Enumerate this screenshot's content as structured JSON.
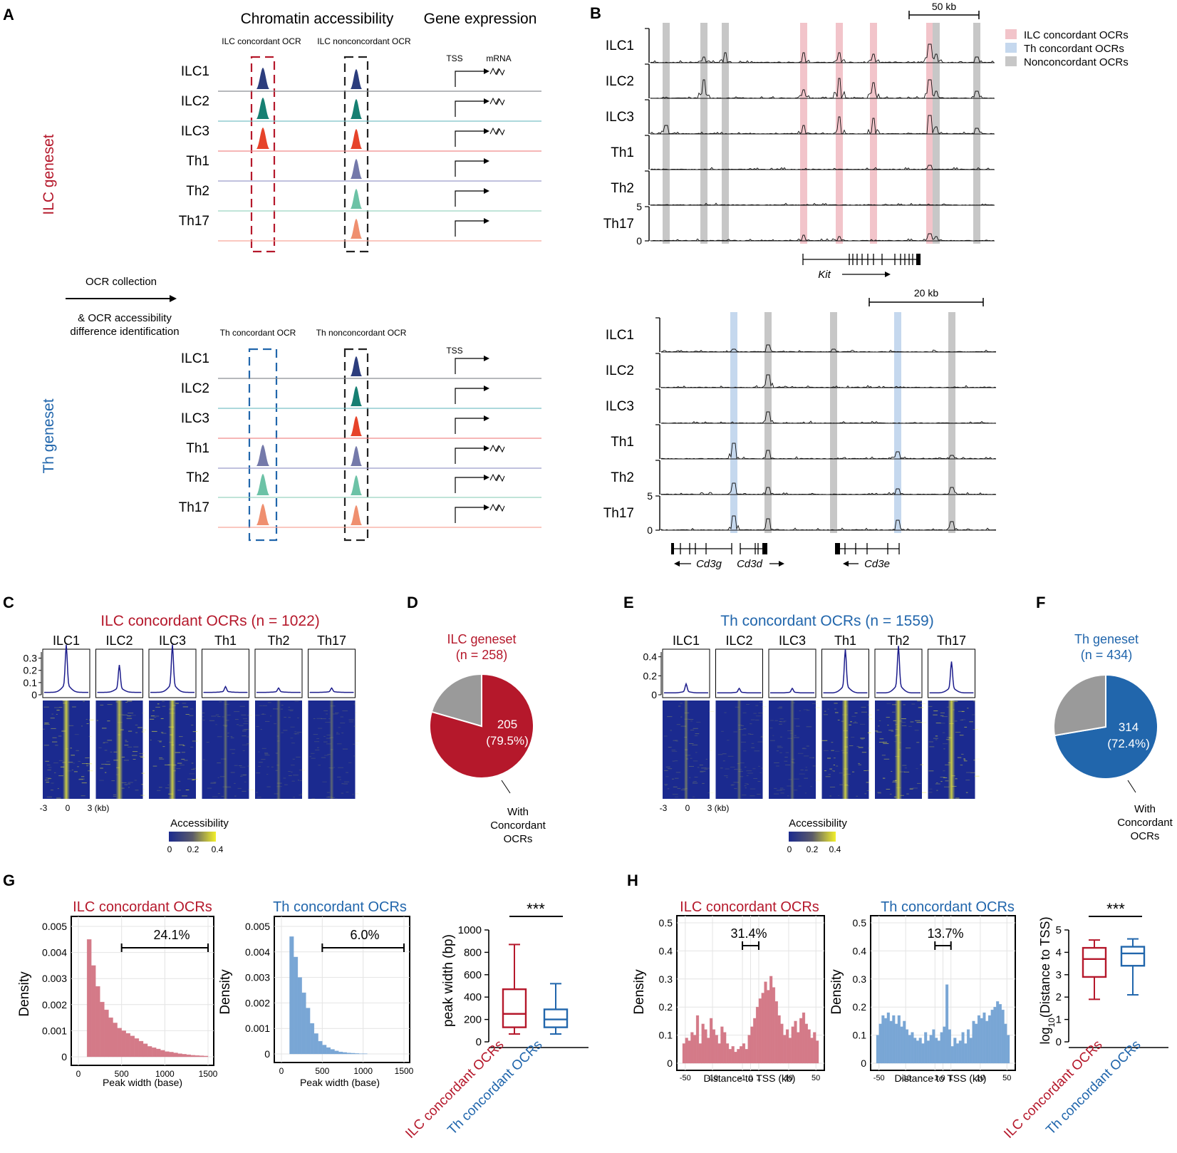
{
  "colors": {
    "ilc_red": "#b5182b",
    "th_blue": "#2166ac",
    "ilc1": "#2c3d7d",
    "ilc2": "#167f72",
    "ilc3": "#e6432a",
    "th1": "#7479aa",
    "th2": "#6cc2a6",
    "th17": "#ef8f6f",
    "ilc_hist": "#d47a88",
    "th_hist": "#79a6d5",
    "pie_gray": "#9a9a9a",
    "hm_bg": "#1b2a8f",
    "hm_hot": "#e8e83a"
  },
  "panel_letters": [
    "A",
    "B",
    "C",
    "D",
    "E",
    "F",
    "G",
    "H"
  ],
  "panelA": {
    "col_header_chrom": "Chromatin accessibility",
    "col_header_expr": "Gene expression",
    "ilc_geneset_label": "ILC geneset",
    "th_geneset_label": "Th geneset",
    "ilc_concordant_label": "ILC concordant OCR",
    "ilc_nonconcordant_label": "ILC nonconcordant OCR",
    "th_concordant_label": "Th concordant OCR",
    "th_nonconcordant_label": "Th nonconcordant OCR",
    "tss_label": "TSS",
    "mrna_label": "mRNA",
    "ocr_collection": "OCR collection",
    "ocr_diff_line1": "& OCR accessibility",
    "ocr_diff_line2": "difference identification",
    "cells": [
      "ILC1",
      "ILC2",
      "ILC3",
      "Th1",
      "Th2",
      "Th17"
    ]
  },
  "panelB": {
    "tracks": [
      "ILC1",
      "ILC2",
      "ILC3",
      "Th1",
      "Th2",
      "Th17"
    ],
    "scale_top": "50 kb",
    "scale_bottom": "20 kb",
    "y_max": "5",
    "y_min": "0",
    "gene_kit": "Kit",
    "gene_cd3g": "Cd3g",
    "gene_cd3d": "Cd3d",
    "gene_cd3e": "Cd3e",
    "legend": [
      {
        "label": "ILC concordant OCRs",
        "color": "#f2c4ca"
      },
      {
        "label": "Th concordant OCRs",
        "color": "#c5d8ee"
      },
      {
        "label": "Nonconcordant OCRs",
        "color": "#c7c7c7"
      }
    ]
  },
  "panelC": {
    "title": "ILC concordant OCRs (n = 1022)",
    "columns": [
      "ILC1",
      "ILC2",
      "ILC3",
      "Th1",
      "Th2",
      "Th17"
    ],
    "y_ticks": [
      "0.3",
      "0.2",
      "0.1",
      "0"
    ],
    "x_ticks": [
      "-3",
      "0",
      "3 (kb)"
    ],
    "colorbar_title": "Accessibility",
    "colorbar_ticks": [
      "0",
      "0.2",
      "0.4"
    ]
  },
  "panelD": {
    "title_line1": "ILC geneset",
    "title_line2": "(n = 258)",
    "value": "205",
    "percent": "(79.5%)",
    "caption": [
      "With",
      "Concordant",
      "OCRs"
    ]
  },
  "panelE": {
    "title": "Th concordant OCRs (n = 1559)",
    "columns": [
      "ILC1",
      "ILC2",
      "ILC3",
      "Th1",
      "Th2",
      "Th17"
    ],
    "y_ticks": [
      "0.4",
      "0.2",
      "0"
    ],
    "x_ticks": [
      "-3",
      "0",
      "3 (kb)"
    ],
    "colorbar_title": "Accessibility",
    "colorbar_ticks": [
      "0",
      "0.2",
      "0.4"
    ]
  },
  "panelF": {
    "title_line1": "Th geneset",
    "title_line2": "(n = 434)",
    "value": "314",
    "percent": "(72.4%)",
    "caption": [
      "With",
      "Concordant",
      "OCRs"
    ]
  },
  "panelG": {
    "ilc_title": "ILC concordant OCRs",
    "th_title": "Th concordant OCRs",
    "y_label": "Density",
    "x_label": "Peak width (base)",
    "ilc_y_ticks": [
      "0.005",
      "0.004",
      "0.003",
      "0.002",
      "0.001",
      "0"
    ],
    "th_y_ticks": [
      "0.005",
      "0.004",
      "0.003",
      "0.002",
      "0.001",
      "0"
    ],
    "x_ticks": [
      "0",
      "500",
      "1000",
      "1500"
    ],
    "ilc_pct": "24.1%",
    "th_pct": "6.0%",
    "box_y_label": "peak width (bp)",
    "box_y_ticks": [
      "1000",
      "800",
      "600",
      "400",
      "200",
      "0"
    ],
    "box_x_labels": [
      "ILC concordant OCRs",
      "Th concordant OCRs"
    ],
    "sig": "***"
  },
  "panelH": {
    "ilc_title": "ILC concordant OCRs",
    "th_title": "Th concordant OCRs",
    "y_label": "Density",
    "x_label": "Distance to TSS (kb)",
    "y_ticks": [
      "0.5",
      "0.4",
      "0.3",
      "0.2",
      "0.1",
      "0"
    ],
    "x_ticks": [
      "-50",
      "-10",
      "-1",
      "0",
      "1",
      "10",
      "50"
    ],
    "ilc_pct": "31.4%",
    "th_pct": "13.7%",
    "box_y_label_main": "log",
    "box_y_label_sub": "10",
    "box_y_label_rest": "(Distance to TSS)",
    "box_y_ticks": [
      "5",
      "4",
      "3",
      "2",
      "1",
      "0"
    ],
    "box_x_labels": [
      "ILC concordant OCRs",
      "Th concordant OCRs"
    ],
    "sig": "***"
  },
  "chart_data": [
    {
      "id": "G-ilc-hist",
      "type": "bar",
      "title": "ILC concordant OCRs",
      "xlabel": "Peak width (base)",
      "ylabel": "Density",
      "xlim": [
        0,
        1500
      ],
      "ylim": [
        0,
        0.005
      ],
      "bin_width": 50,
      "x": [
        100,
        150,
        200,
        250,
        300,
        350,
        400,
        450,
        500,
        550,
        600,
        650,
        700,
        750,
        800,
        850,
        900,
        950,
        1000,
        1050,
        1100,
        1150,
        1200,
        1250,
        1300,
        1350,
        1400,
        1450
      ],
      "values": [
        0.0045,
        0.0035,
        0.0027,
        0.0021,
        0.0018,
        0.0015,
        0.0013,
        0.0011,
        0.001,
        0.0009,
        0.0008,
        0.0007,
        0.0006,
        0.0005,
        0.0004,
        0.00035,
        0.0003,
        0.00025,
        0.0002,
        0.00018,
        0.00015,
        0.00012,
        0.0001,
        8e-05,
        6e-05,
        5e-05,
        4e-05,
        3e-05
      ],
      "annotation": "24.1%"
    },
    {
      "id": "G-th-hist",
      "type": "bar",
      "title": "Th concordant OCRs",
      "xlabel": "Peak width (base)",
      "ylabel": "Density",
      "xlim": [
        0,
        1500
      ],
      "ylim": [
        0,
        0.005
      ],
      "bin_width": 50,
      "x": [
        100,
        150,
        200,
        250,
        300,
        350,
        400,
        450,
        500,
        550,
        600,
        650,
        700,
        750,
        800,
        850,
        900,
        950,
        1000
      ],
      "values": [
        0.0046,
        0.0038,
        0.003,
        0.0024,
        0.0018,
        0.0012,
        0.0008,
        0.0005,
        0.00035,
        0.00025,
        0.00018,
        0.00012,
        8e-05,
        6e-05,
        4e-05,
        3e-05,
        2e-05,
        1e-05,
        1e-05
      ],
      "annotation": "6.0%"
    },
    {
      "id": "G-box",
      "type": "box",
      "ylabel": "peak width (bp)",
      "ylim": [
        0,
        1000
      ],
      "categories": [
        "ILC concordant OCRs",
        "Th concordant OCRs"
      ],
      "boxes": [
        {
          "min": 70,
          "q1": 130,
          "median": 250,
          "q3": 470,
          "max": 870
        },
        {
          "min": 70,
          "q1": 130,
          "median": 200,
          "q3": 290,
          "max": 520
        }
      ],
      "significance": "***"
    },
    {
      "id": "H-ilc-hist",
      "type": "bar",
      "title": "ILC concordant OCRs",
      "xlabel": "Distance to TSS (kb)",
      "ylabel": "Density",
      "ylim": [
        0,
        0.5
      ],
      "values": [
        0.07,
        0.09,
        0.08,
        0.11,
        0.1,
        0.17,
        0.07,
        0.14,
        0.12,
        0.09,
        0.16,
        0.12,
        0.1,
        0.07,
        0.13,
        0.11,
        0.07,
        0.05,
        0.06,
        0.04,
        0.05,
        0.06,
        0.07,
        0.05,
        0.1,
        0.13,
        0.16,
        0.2,
        0.23,
        0.25,
        0.29,
        0.26,
        0.31,
        0.27,
        0.22,
        0.17,
        0.14,
        0.1,
        0.12,
        0.09,
        0.13,
        0.15,
        0.11,
        0.16,
        0.18,
        0.14,
        0.12,
        0.09,
        0.11,
        0.08
      ],
      "annotation": "31.4%"
    },
    {
      "id": "H-th-hist",
      "type": "bar",
      "title": "Th concordant OCRs",
      "xlabel": "Distance to TSS (kb)",
      "ylabel": "Density",
      "ylim": [
        0,
        0.5
      ],
      "values": [
        0.1,
        0.14,
        0.17,
        0.16,
        0.18,
        0.15,
        0.17,
        0.14,
        0.17,
        0.13,
        0.15,
        0.12,
        0.1,
        0.11,
        0.09,
        0.08,
        0.09,
        0.07,
        0.11,
        0.08,
        0.1,
        0.12,
        0.09,
        0.08,
        0.11,
        0.13,
        0.28,
        0.12,
        0.06,
        0.09,
        0.07,
        0.08,
        0.11,
        0.07,
        0.12,
        0.09,
        0.15,
        0.14,
        0.17,
        0.16,
        0.18,
        0.15,
        0.17,
        0.19,
        0.2,
        0.22,
        0.21,
        0.19,
        0.14,
        0.1
      ],
      "annotation": "13.7%"
    },
    {
      "id": "H-box",
      "type": "box",
      "ylabel": "log10(Distance to TSS)",
      "ylim": [
        0,
        5
      ],
      "categories": [
        "ILC concordant OCRs",
        "Th concordant OCRs"
      ],
      "boxes": [
        {
          "min": 1.9,
          "q1": 2.9,
          "median": 3.7,
          "q3": 4.2,
          "max": 4.55
        },
        {
          "min": 2.1,
          "q1": 3.4,
          "median": 3.95,
          "q3": 4.25,
          "max": 4.6
        }
      ],
      "significance": "***"
    },
    {
      "id": "D-pie",
      "type": "pie",
      "title": "ILC geneset (n = 258)",
      "labels": [
        "With Concordant OCRs",
        "Other"
      ],
      "values": [
        205,
        53
      ]
    },
    {
      "id": "F-pie",
      "type": "pie",
      "title": "Th geneset (n = 434)",
      "labels": [
        "With Concordant OCRs",
        "Other"
      ],
      "values": [
        314,
        120
      ]
    },
    {
      "id": "C-profiles",
      "type": "line",
      "title": "ILC concordant OCRs (n = 1022)",
      "series": [
        {
          "name": "ILC1",
          "peak": 0.33
        },
        {
          "name": "ILC2",
          "peak": 0.19
        },
        {
          "name": "ILC3",
          "peak": 0.33
        },
        {
          "name": "Th1",
          "peak": 0.04
        },
        {
          "name": "Th2",
          "peak": 0.03
        },
        {
          "name": "Th17",
          "peak": 0.03
        }
      ],
      "ylim": [
        0,
        0.35
      ]
    },
    {
      "id": "E-profiles",
      "type": "line",
      "title": "Th concordant OCRs (n = 1559)",
      "series": [
        {
          "name": "ILC1",
          "peak": 0.08
        },
        {
          "name": "ILC2",
          "peak": 0.04
        },
        {
          "name": "ILC3",
          "peak": 0.04
        },
        {
          "name": "Th1",
          "peak": 0.39
        },
        {
          "name": "Th2",
          "peak": 0.42
        },
        {
          "name": "Th17",
          "peak": 0.28
        }
      ],
      "ylim": [
        0,
        0.45
      ]
    }
  ]
}
